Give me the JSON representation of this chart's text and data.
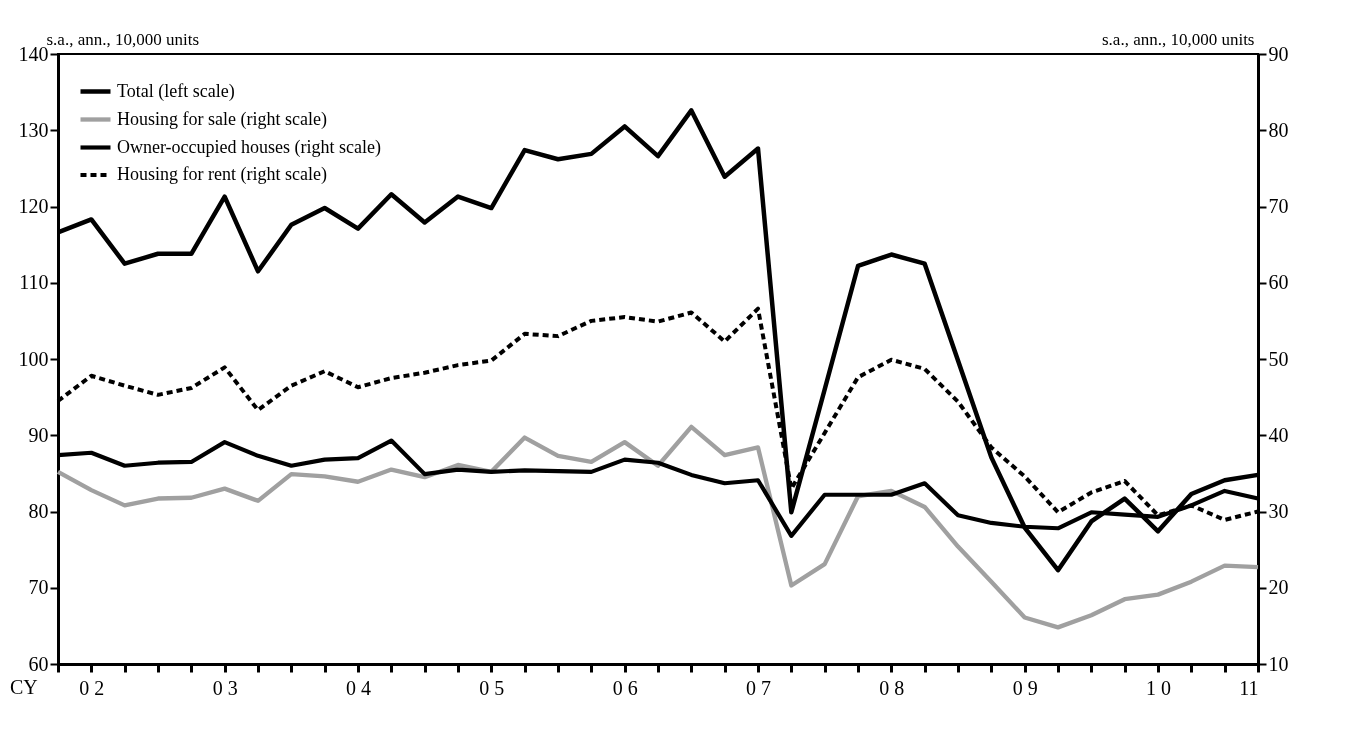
{
  "chart_data": {
    "type": "line",
    "ylabel": "s.a., ann., 10,000 units",
    "y2label": "s.a., ann., 10,000 units",
    "categories": [
      null,
      "0 2",
      null,
      null,
      null,
      "0 3",
      null,
      null,
      null,
      "0 4",
      null,
      null,
      null,
      "0 5",
      null,
      null,
      null,
      "0 6",
      null,
      null,
      null,
      "0 7",
      null,
      null,
      null,
      "0 8",
      null,
      null,
      null,
      "0 9",
      null,
      null,
      null,
      "1 0",
      null,
      null,
      "11"
    ],
    "ylim": [
      60,
      140
    ],
    "yticks": [
      60,
      70,
      80,
      90,
      100,
      110,
      120,
      130,
      140
    ],
    "y2lim": [
      10,
      90
    ],
    "y2ticks": [
      10,
      20,
      30,
      40,
      50,
      60,
      70,
      80,
      90
    ],
    "legend": "top left",
    "grid": false,
    "annotations": [
      "CY"
    ],
    "series": [
      {
        "name": "Total (left scale)",
        "color": "#000000",
        "line_style": "solid",
        "values": [
          116.6,
          118.3,
          112.5,
          113.8,
          113.8,
          121.3,
          111.5,
          117.6,
          119.8,
          117.1,
          121.6,
          117.9,
          121.3,
          119.8,
          127.4,
          126.2,
          126.9,
          130.5,
          126.6,
          132.6,
          123.9,
          127.6,
          79.9,
          96.0,
          112.2,
          113.7,
          112.5,
          99.8,
          87.1,
          77.9,
          72.3,
          78.7,
          81.7,
          77.4,
          82.3,
          84.1,
          84.8
        ]
      },
      {
        "name": "Housing for sale (right scale)",
        "color": "#a0a0a0",
        "line_style": "solid",
        "axis": "y2",
        "values": [
          35.2,
          32.8,
          30.8,
          31.7,
          31.8,
          33.0,
          31.4,
          34.9,
          34.6,
          33.9,
          35.5,
          34.5,
          36.1,
          35.2,
          39.7,
          37.3,
          36.5,
          39.1,
          36.0,
          41.1,
          37.4,
          38.4,
          20.3,
          23.1,
          32.0,
          32.7,
          30.6,
          25.4,
          20.8,
          16.1,
          14.8,
          16.4,
          18.5,
          19.1,
          20.8,
          22.9,
          22.7
        ]
      },
      {
        "name": "Owner-occupied houses (right scale)",
        "color": "#000000",
        "line_style": "solid",
        "axis": "y2",
        "values": [
          37.4,
          37.7,
          36.0,
          36.4,
          36.5,
          39.1,
          37.3,
          36.0,
          36.8,
          37.0,
          39.3,
          34.9,
          35.5,
          35.2,
          35.4,
          35.3,
          35.2,
          36.8,
          36.4,
          34.8,
          33.7,
          34.1,
          26.8,
          32.2,
          32.2,
          32.2,
          33.7,
          29.5,
          28.5,
          28.0,
          27.8,
          29.9,
          29.6,
          29.3,
          30.8,
          32.7,
          31.7
        ]
      },
      {
        "name": "Housing for rent (right scale)",
        "color": "#000000",
        "line_style": "dashed",
        "axis": "y2",
        "values": [
          44.5,
          47.8,
          46.5,
          45.3,
          46.2,
          48.9,
          43.3,
          46.5,
          48.4,
          46.3,
          47.5,
          48.2,
          49.2,
          49.8,
          53.3,
          53.0,
          55.0,
          55.5,
          54.9,
          56.1,
          52.3,
          56.6,
          33.0,
          40.3,
          47.6,
          49.9,
          48.7,
          44.4,
          38.4,
          34.6,
          29.9,
          32.5,
          34.0,
          29.5,
          30.8,
          28.9,
          30.0
        ]
      }
    ]
  }
}
